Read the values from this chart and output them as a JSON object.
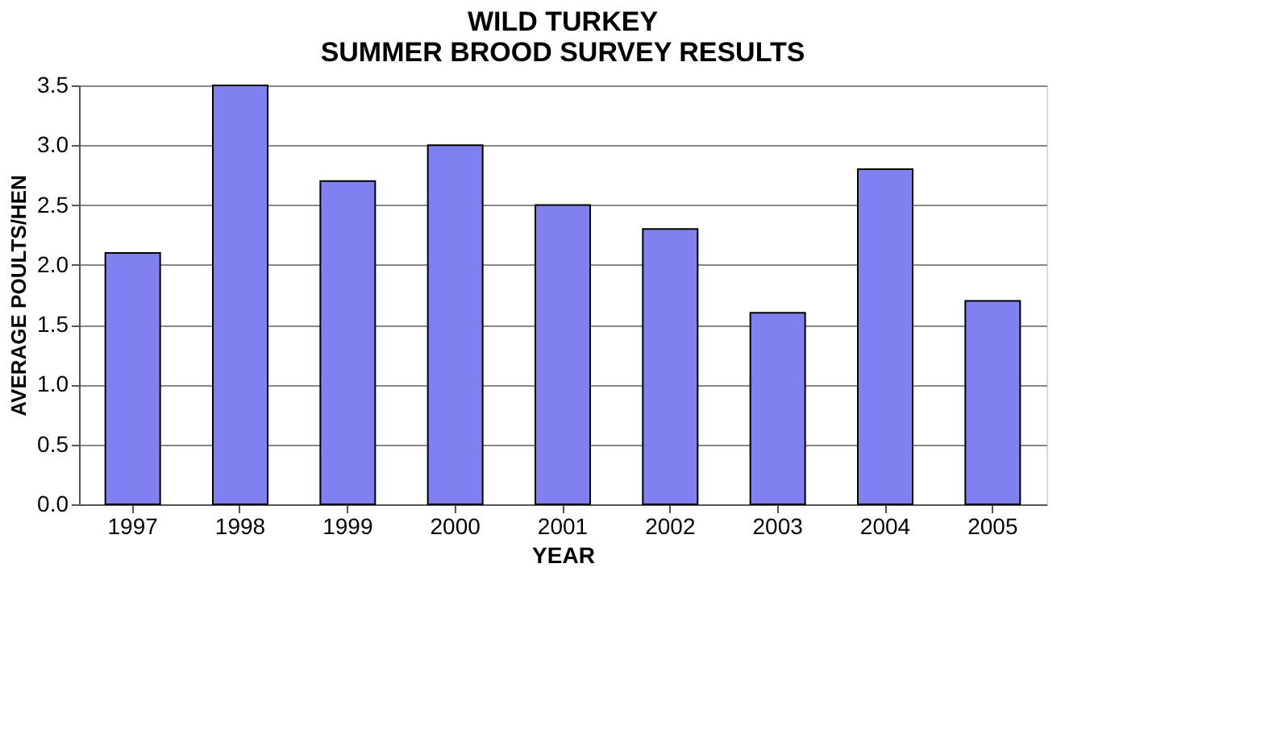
{
  "chart_data": {
    "type": "bar",
    "title": [
      "WILD TURKEY",
      "SUMMER BROOD SURVEY RESULTS"
    ],
    "xlabel": "YEAR",
    "ylabel": "AVERAGE POULTS/HEN",
    "categories": [
      "1997",
      "1998",
      "1999",
      "2000",
      "2001",
      "2002",
      "2003",
      "2004",
      "2005"
    ],
    "values": [
      2.1,
      3.5,
      2.7,
      3.0,
      2.5,
      2.3,
      1.6,
      2.8,
      1.7
    ],
    "color": "#8080f0",
    "ylim": [
      0,
      3.5
    ],
    "yticks": [
      {
        "value": 0,
        "label": "0.0"
      },
      {
        "value": 0.5,
        "label": "0.5"
      },
      {
        "value": 1,
        "label": "1.0"
      },
      {
        "value": 1.5,
        "label": "1.5"
      },
      {
        "value": 2,
        "label": "2.0"
      },
      {
        "value": 2.5,
        "label": "2.5"
      },
      {
        "value": 3,
        "label": "3.0"
      },
      {
        "value": 3.5,
        "label": "3.5"
      }
    ],
    "grid": "y"
  }
}
